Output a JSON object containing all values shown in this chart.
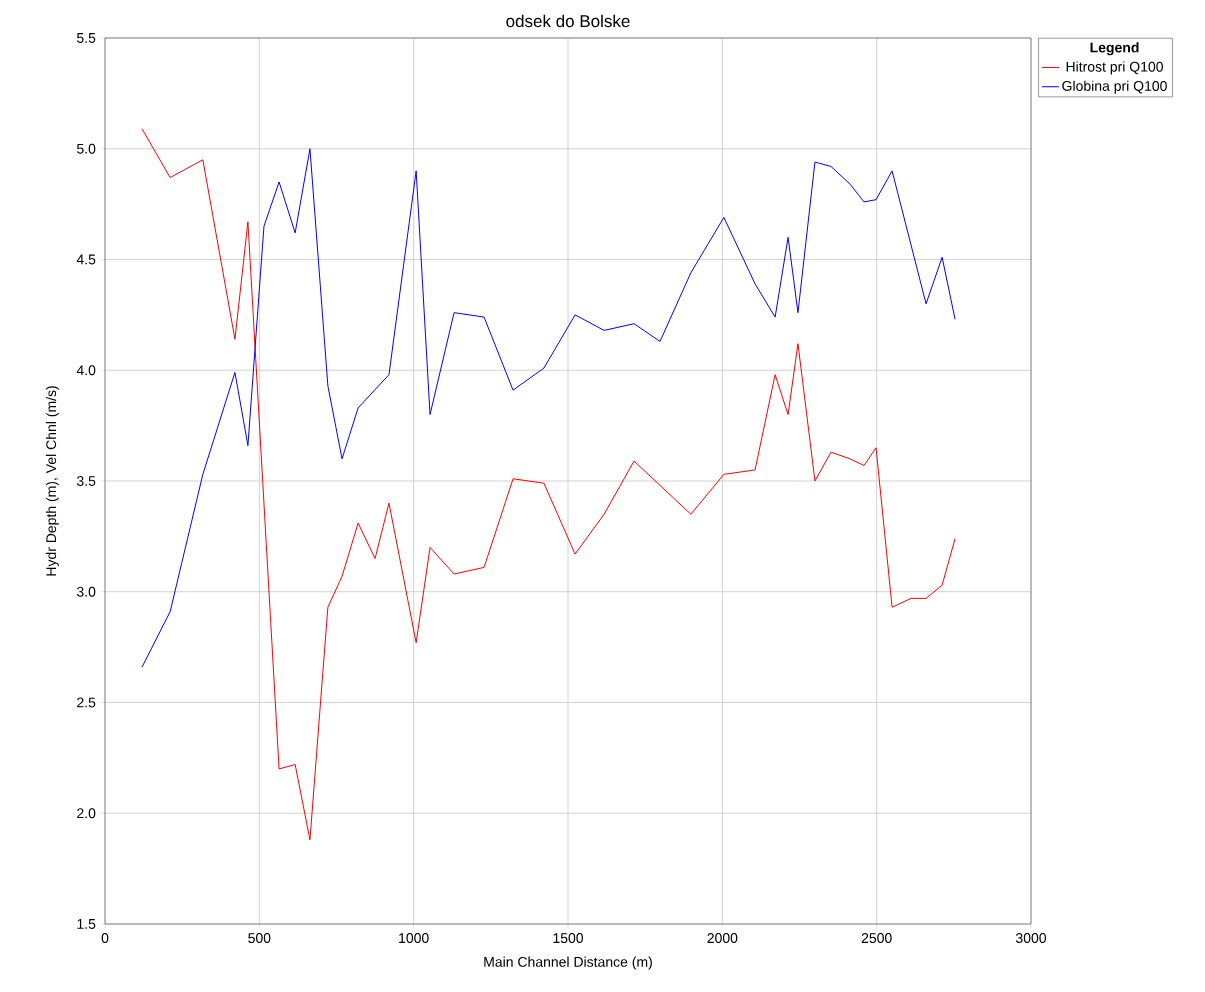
{
  "chart_data": {
    "type": "line",
    "title": "odsek do Bolske",
    "xlabel": "Main Channel Distance (m)",
    "ylabel": "Hydr Depth (m), Vel Chnl (m/s)",
    "legend_title": "Legend",
    "xlim": [
      0,
      3000
    ],
    "ylim": [
      1.5,
      5.5
    ],
    "xticks": [
      0,
      500,
      1000,
      1500,
      2000,
      2500,
      3000
    ],
    "yticks": [
      {
        "value": 1.5,
        "label": "1.5"
      },
      {
        "value": 2.0,
        "label": "2.0"
      },
      {
        "value": 2.5,
        "label": "2.5"
      },
      {
        "value": 3.0,
        "label": "3.0"
      },
      {
        "value": 3.5,
        "label": "3.5"
      },
      {
        "value": 4.0,
        "label": "4.0"
      },
      {
        "value": 4.5,
        "label": "4.5"
      },
      {
        "value": 5.0,
        "label": "5.0"
      },
      {
        "value": 5.5,
        "label": "5.5"
      }
    ],
    "grid": true,
    "legend": "top right",
    "marker": "none",
    "line_style": "solid",
    "series": [
      {
        "name": "Hitrost pri Q100",
        "color": "#ff0000",
        "x": [
          120,
          211,
          317,
          421,
          463,
          564,
          616,
          664,
          722,
          768,
          820,
          875,
          920,
          1008,
          1053,
          1131,
          1228,
          1322,
          1422,
          1523,
          1617,
          1714,
          1898,
          2005,
          2106,
          2171,
          2213,
          2245,
          2300,
          2352,
          2414,
          2459,
          2498,
          2550,
          2611,
          2660,
          2712,
          2754
        ],
        "values": [
          5.09,
          4.87,
          4.95,
          4.14,
          4.67,
          2.2,
          2.22,
          1.88,
          2.93,
          3.07,
          3.31,
          3.15,
          3.4,
          2.77,
          3.2,
          3.08,
          3.11,
          3.51,
          3.49,
          3.17,
          3.35,
          3.59,
          3.35,
          3.53,
          3.55,
          3.98,
          3.8,
          4.12,
          3.5,
          3.63,
          3.6,
          3.57,
          3.65,
          2.93,
          2.97,
          2.97,
          3.03,
          3.24
        ]
      },
      {
        "name": "Globina pri Q100",
        "color": "#0000ff",
        "x": [
          120,
          211,
          317,
          421,
          463,
          515,
          564,
          616,
          664,
          722,
          768,
          820,
          920,
          1008,
          1053,
          1131,
          1228,
          1322,
          1422,
          1523,
          1617,
          1714,
          1798,
          1898,
          2005,
          2106,
          2171,
          2213,
          2245,
          2300,
          2352,
          2414,
          2459,
          2498,
          2550,
          2660,
          2712,
          2754
        ],
        "values": [
          2.66,
          2.91,
          3.53,
          3.99,
          3.66,
          4.65,
          4.85,
          4.62,
          5.0,
          3.93,
          3.6,
          3.83,
          3.98,
          4.9,
          3.8,
          4.26,
          4.24,
          3.91,
          4.01,
          4.25,
          4.18,
          4.21,
          4.13,
          4.44,
          4.69,
          4.39,
          4.24,
          4.6,
          4.26,
          4.94,
          4.92,
          4.84,
          4.76,
          4.77,
          4.9,
          4.3,
          4.51,
          4.23
        ]
      }
    ]
  }
}
